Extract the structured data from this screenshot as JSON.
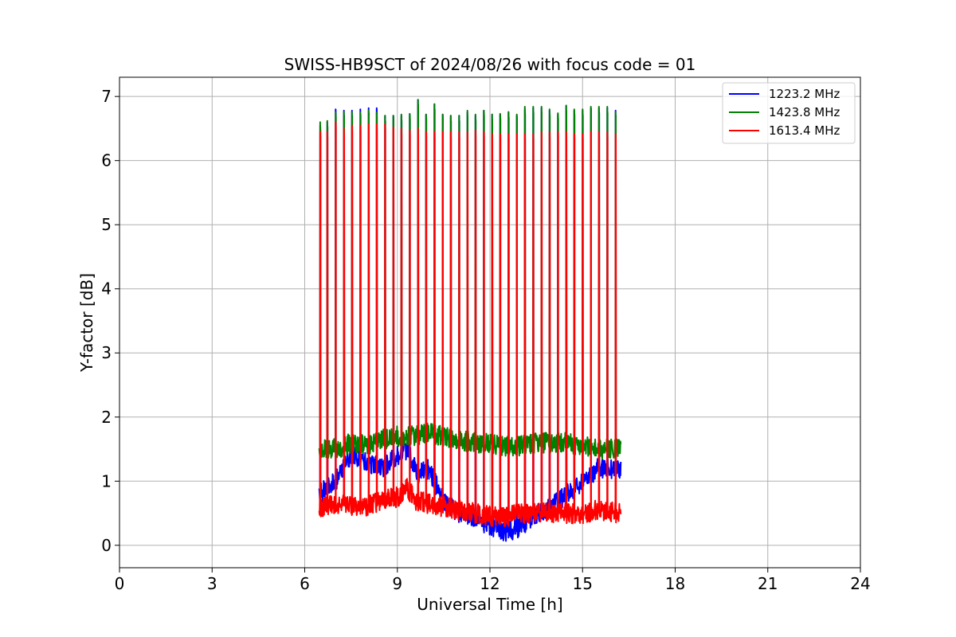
{
  "chart_data": {
    "type": "line",
    "title": "SWISS-HB9SCT of 2024/08/26 with focus code = 01",
    "xlabel": "Universal Time [h]",
    "ylabel": "Y-factor [dB]",
    "xlim": [
      0,
      24
    ],
    "ylim": [
      -0.35,
      7.3
    ],
    "x_ticks": [
      0,
      3,
      6,
      9,
      12,
      15,
      18,
      21,
      24
    ],
    "y_ticks": [
      0,
      1,
      2,
      3,
      4,
      5,
      6,
      7
    ],
    "grid": true,
    "legend_position": "top-right",
    "pulse_times": [
      6.5,
      6.73,
      7.0,
      7.27,
      7.53,
      7.8,
      8.07,
      8.33,
      8.6,
      8.87,
      9.13,
      9.4,
      9.67,
      9.93,
      10.2,
      10.47,
      10.73,
      11.0,
      11.27,
      11.53,
      11.8,
      12.07,
      12.33,
      12.6,
      12.87,
      13.13,
      13.4,
      13.67,
      13.93,
      14.2,
      14.47,
      14.73,
      15.0,
      15.27,
      15.53,
      15.8,
      16.07
    ],
    "series": [
      {
        "name": "1223.2 MHz",
        "color": "#0000ff",
        "baseline": [
          [
            6.5,
            0.8
          ],
          [
            7.0,
            1.0
          ],
          [
            7.5,
            1.4
          ],
          [
            8.0,
            1.3
          ],
          [
            8.5,
            1.2
          ],
          [
            9.0,
            1.4
          ],
          [
            9.3,
            1.5
          ],
          [
            9.7,
            1.1
          ],
          [
            10.0,
            1.2
          ],
          [
            10.5,
            0.7
          ],
          [
            11.0,
            0.5
          ],
          [
            11.5,
            0.4
          ],
          [
            12.0,
            0.3
          ],
          [
            12.5,
            0.2
          ],
          [
            13.0,
            0.3
          ],
          [
            13.5,
            0.5
          ],
          [
            14.0,
            0.6
          ],
          [
            14.5,
            0.8
          ],
          [
            15.0,
            1.0
          ],
          [
            15.5,
            1.2
          ],
          [
            16.2,
            1.2
          ]
        ],
        "peaks": [
          6.55,
          6.6,
          6.8,
          6.78,
          6.78,
          6.8,
          6.82,
          6.82,
          6.7,
          6.7,
          6.7,
          6.72,
          6.95,
          6.72,
          6.88,
          6.72,
          6.7,
          6.7,
          6.75,
          6.7,
          6.78,
          6.72,
          6.72,
          6.75,
          6.7,
          6.8,
          6.82,
          6.82,
          6.78,
          6.72,
          6.85,
          6.78,
          6.78,
          6.82,
          6.82,
          6.82,
          6.78
        ]
      },
      {
        "name": "1423.8 MHz",
        "color": "#008000",
        "baseline": [
          [
            6.5,
            1.5
          ],
          [
            7.0,
            1.5
          ],
          [
            7.5,
            1.6
          ],
          [
            8.0,
            1.55
          ],
          [
            8.5,
            1.65
          ],
          [
            9.0,
            1.7
          ],
          [
            9.5,
            1.7
          ],
          [
            10.0,
            1.75
          ],
          [
            10.5,
            1.7
          ],
          [
            11.0,
            1.65
          ],
          [
            11.5,
            1.6
          ],
          [
            12.0,
            1.6
          ],
          [
            12.5,
            1.55
          ],
          [
            13.0,
            1.55
          ],
          [
            13.5,
            1.6
          ],
          [
            14.0,
            1.6
          ],
          [
            14.5,
            1.6
          ],
          [
            15.0,
            1.55
          ],
          [
            15.5,
            1.5
          ],
          [
            16.2,
            1.5
          ]
        ],
        "peaks": [
          6.6,
          6.62,
          6.75,
          6.76,
          6.76,
          6.75,
          6.78,
          6.75,
          6.7,
          6.7,
          6.72,
          6.73,
          6.95,
          6.72,
          6.88,
          6.72,
          6.7,
          6.7,
          6.78,
          6.72,
          6.78,
          6.72,
          6.73,
          6.76,
          6.72,
          6.84,
          6.84,
          6.84,
          6.8,
          6.74,
          6.86,
          6.8,
          6.8,
          6.84,
          6.84,
          6.84,
          6.76
        ]
      },
      {
        "name": "1613.4 MHz",
        "color": "#ff0000",
        "baseline": [
          [
            6.5,
            0.6
          ],
          [
            7.0,
            0.65
          ],
          [
            7.5,
            0.6
          ],
          [
            8.0,
            0.6
          ],
          [
            8.5,
            0.7
          ],
          [
            9.0,
            0.75
          ],
          [
            9.3,
            0.9
          ],
          [
            9.6,
            0.7
          ],
          [
            10.0,
            0.65
          ],
          [
            10.5,
            0.6
          ],
          [
            11.0,
            0.55
          ],
          [
            11.5,
            0.5
          ],
          [
            12.0,
            0.45
          ],
          [
            12.5,
            0.45
          ],
          [
            13.0,
            0.5
          ],
          [
            13.5,
            0.5
          ],
          [
            14.0,
            0.5
          ],
          [
            14.5,
            0.5
          ],
          [
            15.0,
            0.5
          ],
          [
            15.5,
            0.55
          ],
          [
            16.2,
            0.5
          ]
        ],
        "peaks": [
          6.45,
          6.45,
          6.6,
          6.5,
          6.55,
          6.55,
          6.57,
          6.57,
          6.57,
          6.52,
          6.5,
          6.47,
          6.5,
          6.45,
          6.45,
          6.45,
          6.45,
          6.45,
          6.45,
          6.47,
          6.45,
          6.42,
          6.42,
          6.42,
          6.42,
          6.42,
          6.42,
          6.45,
          6.45,
          6.45,
          6.45,
          6.42,
          6.42,
          6.45,
          6.45,
          6.45,
          6.42
        ]
      }
    ]
  }
}
